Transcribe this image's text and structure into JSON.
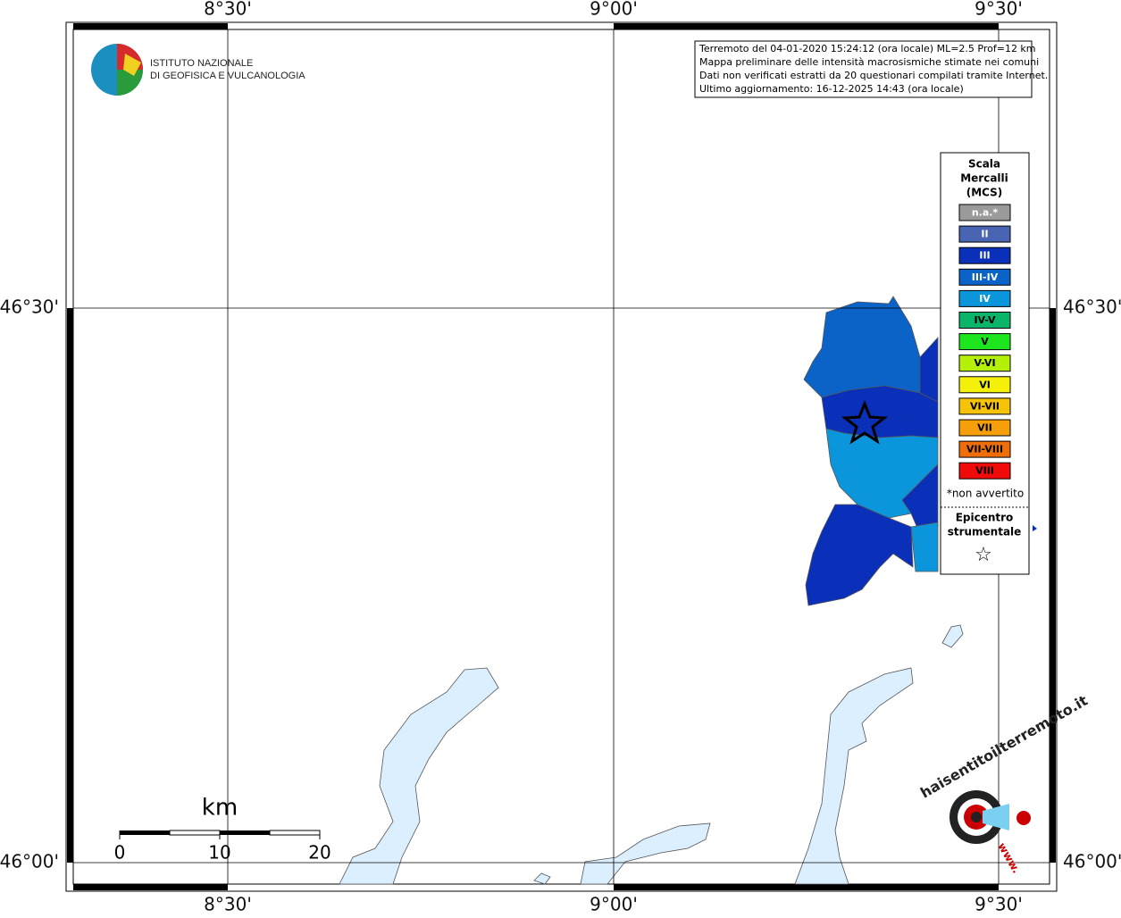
{
  "axes": {
    "top": [
      "8°30'",
      "9°00'",
      "9°30'"
    ],
    "bottom": [
      "8°30'",
      "9°00'",
      "9°30'"
    ],
    "left": [
      "46°30'",
      "46°00'"
    ],
    "right": [
      "46°30'",
      "46°00'"
    ]
  },
  "info": [
    "Terremoto del 04-01-2020 15:24:12 (ora locale) ML=2.5 Prof=12 km",
    "Mappa preliminare delle intensità macrosismiche stimate nei comuni",
    "Dati non verificati estratti da 20 questionari compilati tramite Internet.",
    "Ultimo aggiornamento: 16-12-2025 14:43 (ora locale)"
  ],
  "logo": [
    "ISTITUTO NAZIONALE",
    "DI GEOFISICA E VULCANOLOGIA"
  ],
  "legend": {
    "title": [
      "Scala",
      "Mercalli",
      "(MCS)"
    ],
    "classes": [
      {
        "label": "n.a.*",
        "color": "#9a9a9a"
      },
      {
        "label": "II",
        "color": "#4a64b4"
      },
      {
        "label": "III",
        "color": "#0a2fb8"
      },
      {
        "label": "III-IV",
        "color": "#0b63c8"
      },
      {
        "label": "IV",
        "color": "#0b96dc"
      },
      {
        "label": "IV-V",
        "color": "#0ab469"
      },
      {
        "label": "V",
        "color": "#1ee61e"
      },
      {
        "label": "V-VI",
        "color": "#b4f00a"
      },
      {
        "label": "VI",
        "color": "#f5f00a"
      },
      {
        "label": "VI-VII",
        "color": "#f5c30a"
      },
      {
        "label": "VII",
        "color": "#f5a00a"
      },
      {
        "label": "VII-VIII",
        "color": "#f06e0a"
      },
      {
        "label": "VIII",
        "color": "#f00a0a"
      }
    ],
    "note": "*non avvertito",
    "epicenter": [
      "Epicentro",
      "strumentale"
    ],
    "epicenter_symbol": "☆"
  },
  "scale": {
    "unit": "km",
    "ticks": [
      "0",
      "10",
      "20"
    ]
  },
  "brand": [
    "haisentitoilterremoto.it",
    "www."
  ]
}
